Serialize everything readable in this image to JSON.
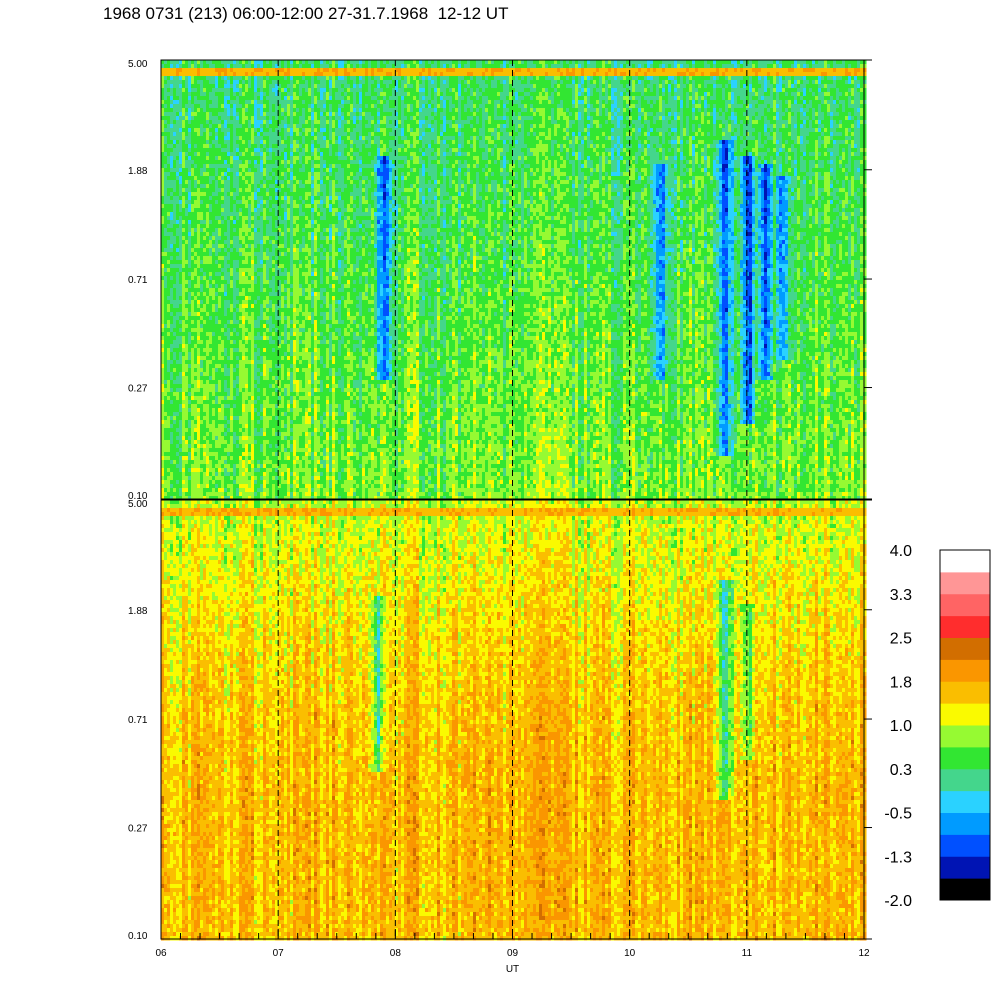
{
  "title": "1968 0731 (213) 06:00-12:00 27-31.7.1968  12-12 UT",
  "chart_data": [
    {
      "type": "heatmap",
      "panel": "upper",
      "x_ticks": [
        "06",
        "07",
        "08",
        "09",
        "10",
        "11",
        "12"
      ],
      "x_range": [
        6,
        12
      ],
      "y_ticks": [
        "5.00",
        "1.88",
        "0.71",
        "0.27",
        "0.10"
      ],
      "y_scale": "log",
      "y_range": [
        0.1,
        5.0
      ],
      "dashed_gridlines_x": [
        7,
        8,
        9,
        10,
        11
      ],
      "dominant_levels": "green/cyan background with blue dips near 08 and 10.3-11.3 UT",
      "dark_features": [
        {
          "x": 7.9,
          "ylo": 0.3,
          "yhi": 2.2,
          "strength": 1.0
        },
        {
          "x": 10.25,
          "ylo": 0.3,
          "yhi": 2.0,
          "strength": 0.8
        },
        {
          "x": 10.8,
          "ylo": 0.15,
          "yhi": 2.5,
          "strength": 1.0
        },
        {
          "x": 11.0,
          "ylo": 0.2,
          "yhi": 2.2,
          "strength": 1.0
        },
        {
          "x": 11.15,
          "ylo": 0.3,
          "yhi": 2.0,
          "strength": 0.9
        },
        {
          "x": 11.3,
          "ylo": 0.35,
          "yhi": 1.8,
          "strength": 0.7
        }
      ]
    },
    {
      "type": "heatmap",
      "panel": "lower",
      "x_ticks": [
        "06",
        "07",
        "08",
        "09",
        "10",
        "11",
        "12"
      ],
      "x_range": [
        6,
        12
      ],
      "y_ticks": [
        "5.00",
        "1.88",
        "0.71",
        "0.27",
        "0.10"
      ],
      "y_scale": "log",
      "y_range": [
        0.1,
        5.0
      ],
      "x_label": "UT",
      "dashed_gridlines_x": [
        7,
        8,
        9,
        10,
        11
      ],
      "dominant_levels": "orange/yellow background with cyan dips near 07.9 and 10.8 UT",
      "dark_features": [
        {
          "x": 7.85,
          "ylo": 0.45,
          "yhi": 2.2,
          "strength": 0.8
        },
        {
          "x": 10.8,
          "ylo": 0.35,
          "yhi": 2.5,
          "strength": 1.0
        },
        {
          "x": 11.0,
          "ylo": 0.5,
          "yhi": 2.0,
          "strength": 0.6
        }
      ]
    },
    {
      "type": "colorbar",
      "labels": [
        "4.0",
        "3.3",
        "2.5",
        "1.8",
        "1.0",
        "0.3",
        "-0.5",
        "-1.3",
        "-2.0"
      ],
      "colors": [
        "#000000",
        "#0014b4",
        "#0050ff",
        "#009bff",
        "#2ad2ff",
        "#44d68c",
        "#32e632",
        "#96fa32",
        "#fafa00",
        "#fabe00",
        "#fa9600",
        "#d26e00",
        "#ff2d2d",
        "#ff6464",
        "#ff9696",
        "#ffffff"
      ]
    }
  ]
}
